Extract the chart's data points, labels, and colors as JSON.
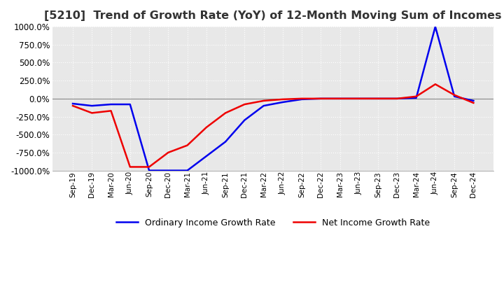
{
  "title": "[5210]  Trend of Growth Rate (YoY) of 12-Month Moving Sum of Incomes",
  "title_fontsize": 11.5,
  "ylim": [
    -1000,
    1000
  ],
  "yticks": [
    1000,
    750,
    500,
    250,
    0,
    -250,
    -500,
    -750,
    -1000
  ],
  "background_color": "#ffffff",
  "plot_background_color": "#e8e8e8",
  "grid_color": "#ffffff",
  "grid_style": "dotted",
  "line_color_ordinary": "#0000ee",
  "line_color_net": "#ee0000",
  "legend_ordinary": "Ordinary Income Growth Rate",
  "legend_net": "Net Income Growth Rate",
  "dates": [
    "Sep-19",
    "Dec-19",
    "Mar-20",
    "Jun-20",
    "Sep-20",
    "Dec-20",
    "Mar-21",
    "Jun-21",
    "Sep-21",
    "Dec-21",
    "Mar-22",
    "Jun-22",
    "Sep-22",
    "Dec-22",
    "Mar-23",
    "Jun-23",
    "Sep-23",
    "Dec-23",
    "Mar-24",
    "Jun-24",
    "Sep-24",
    "Dec-24"
  ],
  "ordinary_income_growth": [
    -70,
    -100,
    -80,
    -80,
    -1000,
    -1000,
    -1000,
    -800,
    -600,
    -300,
    -100,
    -50,
    -10,
    0,
    0,
    0,
    0,
    0,
    10,
    1000,
    30,
    -30
  ],
  "net_income_growth": [
    -100,
    -200,
    -170,
    -950,
    -950,
    -750,
    -650,
    -400,
    -200,
    -80,
    -30,
    -10,
    0,
    0,
    0,
    0,
    0,
    0,
    30,
    200,
    50,
    -60
  ]
}
